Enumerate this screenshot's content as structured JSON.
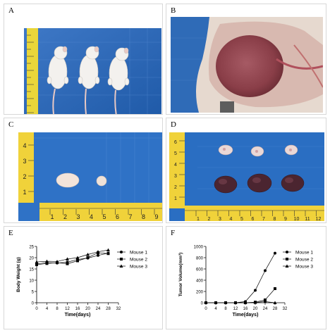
{
  "panels": {
    "a": {
      "label": "A"
    },
    "b": {
      "label": "B"
    },
    "c": {
      "label": "C",
      "ruler_vertical": [
        "4",
        "3",
        "2",
        "1"
      ],
      "ruler_horizontal": [
        "1",
        "2",
        "3",
        "4",
        "5",
        "6",
        "7",
        "8",
        "9"
      ]
    },
    "d": {
      "label": "D",
      "ruler_vertical": [
        "6",
        "5",
        "4",
        "3",
        "2",
        "1"
      ],
      "ruler_horizontal": [
        "1",
        "2",
        "3",
        "4",
        "5",
        "6",
        "7",
        "8",
        "9",
        "10",
        "11",
        "12"
      ]
    },
    "e": {
      "label": "E"
    },
    "f": {
      "label": "F"
    }
  },
  "chart_data": [
    {
      "panel": "E",
      "type": "line",
      "xlabel": "Time(days)",
      "ylabel": "Body Weight (g)",
      "x": [
        0,
        4,
        8,
        12,
        16,
        20,
        24,
        28
      ],
      "xticks": [
        "0",
        "4",
        "8",
        "12",
        "16",
        "20",
        "24",
        "28",
        "32"
      ],
      "yticks": [
        "0",
        "5",
        "10",
        "15",
        "20",
        "25"
      ],
      "xlim": [
        0,
        32
      ],
      "ylim": [
        0,
        25
      ],
      "legend_position": "right",
      "series": [
        {
          "name": "Mouse 1",
          "marker": "circle",
          "values": [
            17.2,
            17.8,
            17.6,
            18.0,
            19.2,
            19.8,
            21.0,
            22.0
          ]
        },
        {
          "name": "Mouse 2",
          "marker": "square",
          "values": [
            16.9,
            17.4,
            17.8,
            17.3,
            18.6,
            20.0,
            22.2,
            21.8
          ]
        },
        {
          "name": "Mouse 3",
          "marker": "triangle",
          "values": [
            18.1,
            18.4,
            18.3,
            19.4,
            20.0,
            21.4,
            22.6,
            23.4
          ]
        }
      ]
    },
    {
      "panel": "F",
      "type": "line",
      "xlabel": "Time(days)",
      "ylabel": "Tumor Volume(mm³)",
      "x": [
        0,
        4,
        8,
        12,
        16,
        20,
        24,
        28
      ],
      "xticks": [
        "0",
        "4",
        "8",
        "12",
        "16",
        "20",
        "24",
        "28",
        "32"
      ],
      "yticks": [
        "0",
        "200",
        "400",
        "600",
        "800",
        "1000"
      ],
      "xlim": [
        0,
        32
      ],
      "ylim": [
        0,
        1000
      ],
      "legend_position": "right",
      "series": [
        {
          "name": "Mouse 1",
          "marker": "circle",
          "values": [
            0,
            0,
            0,
            0,
            20,
            220,
            570,
            880
          ]
        },
        {
          "name": "Mouse 2",
          "marker": "square",
          "values": [
            0,
            0,
            0,
            0,
            0,
            10,
            50,
            250
          ]
        },
        {
          "name": "Mouse 3",
          "marker": "triangle",
          "values": [
            0,
            0,
            0,
            0,
            0,
            5,
            20,
            0
          ]
        }
      ]
    }
  ]
}
